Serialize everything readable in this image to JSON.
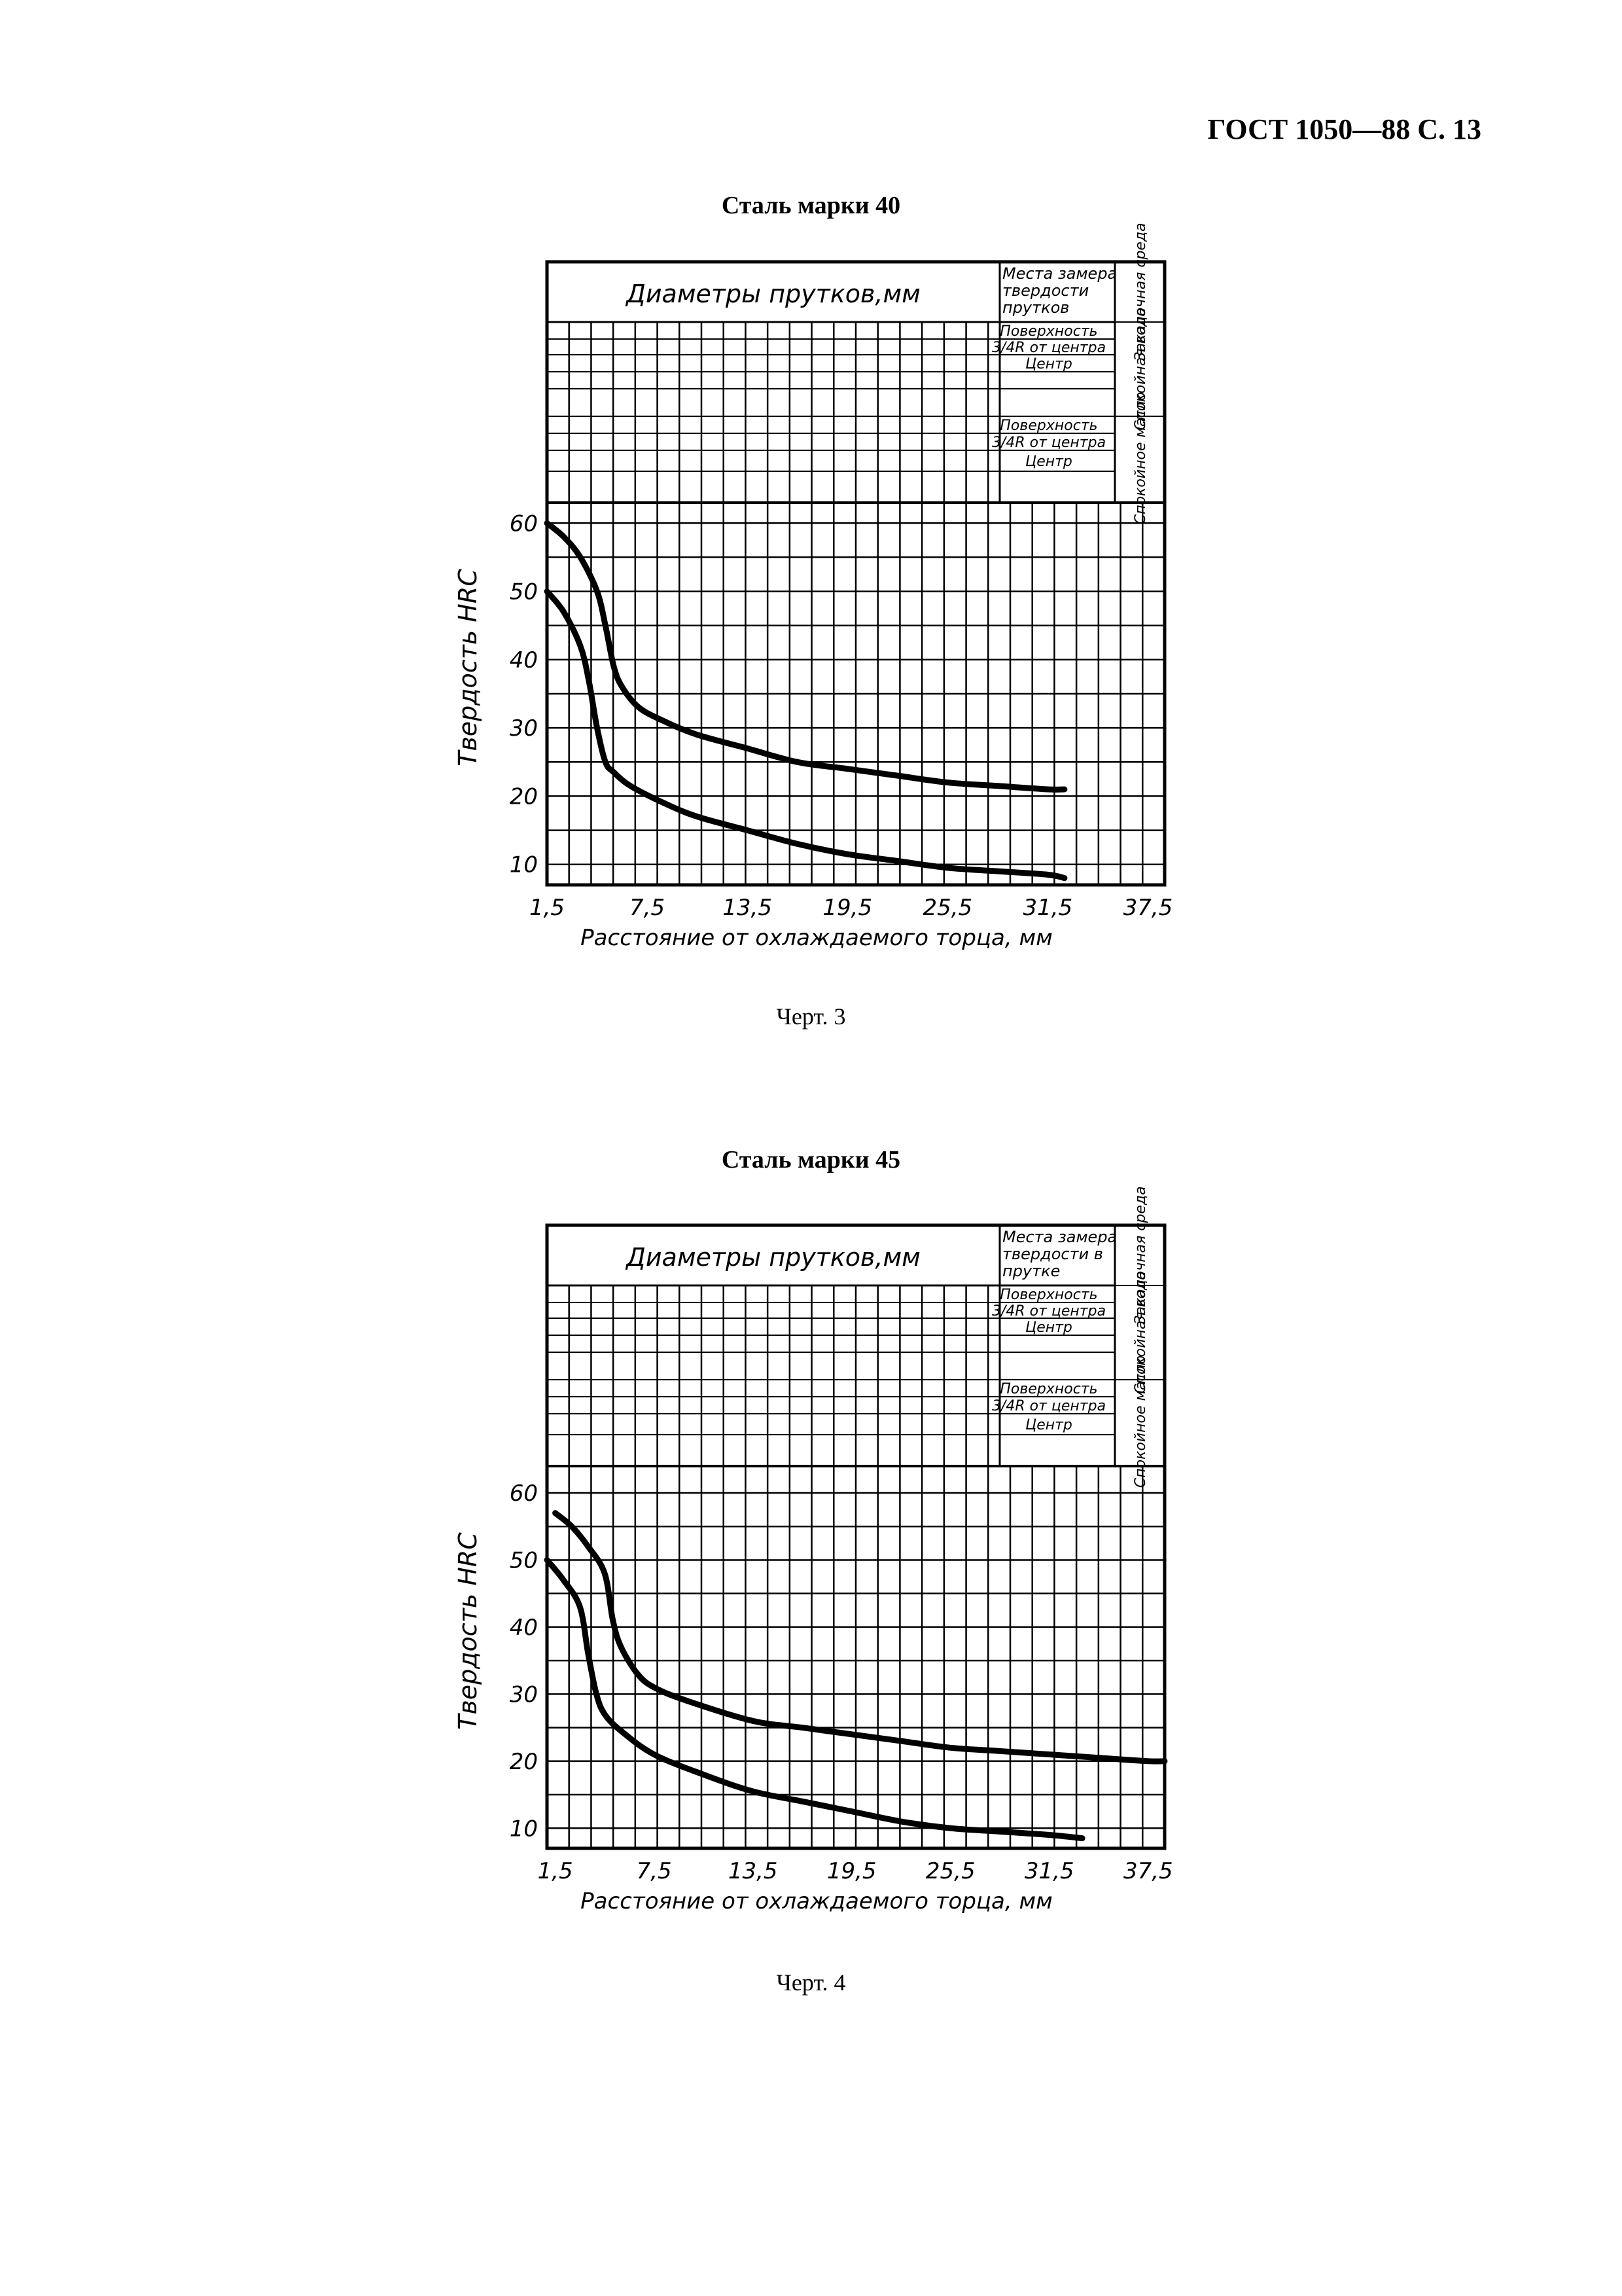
{
  "page_header": "ГОСТ 1050—88 С. 13",
  "charts": [
    {
      "title": "Сталь марки 40",
      "caption": "Черт. 3",
      "header_title": "Диаметры прутков,мм",
      "measure_title": "Места замера твердости прутков",
      "medium_title": "Закалочная среда",
      "medium_water": "Спокойная вода",
      "medium_oil": "Спокойное масло",
      "row_labels": [
        "Поверхность",
        "3/4R от центра",
        "Центр",
        "Поверхность",
        "3/4R от центра",
        "Центр"
      ]
    },
    {
      "title": "Сталь марки 45",
      "caption": "Черт. 4",
      "header_title": "Диаметры прутков,мм",
      "measure_title": "Места замера твердости в прутке",
      "medium_title": "Закалочная среда",
      "medium_water": "Спокойная вода",
      "medium_oil": "Спокойное масло",
      "row_labels": [
        "Поверхность",
        "3/4R от центра",
        "Центр",
        "Поверхность",
        "3/4R от центра",
        "Центр"
      ]
    }
  ],
  "chart_data": [
    {
      "type": "line",
      "title": "Сталь марки 40",
      "xlabel": "Расстояние от охлаждаемого торца, мм",
      "ylabel": "Твердость HRC",
      "x_ticks": [
        1.5,
        7.5,
        13.5,
        19.5,
        25.5,
        31.5,
        37.5
      ],
      "y_ticks": [
        10,
        20,
        30,
        40,
        50,
        60
      ],
      "xlim": [
        1.5,
        38.5
      ],
      "ylim": [
        7,
        63
      ],
      "grid": true,
      "series": [
        {
          "x": [
            1.5,
            2.5,
            3.5,
            4.5,
            5.0,
            5.5,
            6.0,
            7.0,
            8.5,
            10.5,
            13.5,
            16.5,
            19.5,
            22.5,
            25.5,
            28.5,
            31.5,
            32.5
          ],
          "y": [
            60,
            58,
            55,
            50,
            45,
            39,
            36,
            33,
            31,
            29,
            27,
            25,
            24,
            23,
            22,
            21.5,
            21,
            21
          ]
        },
        {
          "x": [
            1.5,
            2.5,
            3.5,
            4.0,
            4.5,
            5.0,
            5.5,
            6.5,
            8.5,
            10.5,
            13.5,
            16.5,
            19.5,
            22.5,
            25.5,
            28.5,
            31.5,
            32.5
          ],
          "y": [
            50,
            47,
            42,
            37,
            30,
            25,
            23.5,
            21.5,
            19,
            17,
            15,
            13,
            11.5,
            10.5,
            9.5,
            9,
            8.5,
            8
          ]
        }
      ]
    },
    {
      "type": "line",
      "title": "Сталь марки 45",
      "xlabel": "Расстояние от охлаждаемого торца, мм",
      "ylabel": "Твердость HRC",
      "x_ticks": [
        1.5,
        7.5,
        13.5,
        19.5,
        25.5,
        31.5,
        37.5
      ],
      "y_ticks": [
        10,
        20,
        30,
        40,
        50,
        60
      ],
      "xlim": [
        1.0,
        38.5
      ],
      "ylim": [
        7,
        64
      ],
      "grid": true,
      "series": [
        {
          "x": [
            1.5,
            2.5,
            3.5,
            4.5,
            5.0,
            5.5,
            6.5,
            7.5,
            9.5,
            13.5,
            16.5,
            19.5,
            22.5,
            25.5,
            28.5,
            31.5,
            34.5,
            37.5,
            38.5
          ],
          "y": [
            57,
            55,
            52,
            48,
            41,
            37,
            33,
            31,
            29,
            26,
            25,
            24,
            23,
            22,
            21.5,
            21,
            20.5,
            20,
            20
          ]
        },
        {
          "x": [
            1.0,
            2.0,
            3.0,
            3.5,
            4.0,
            4.5,
            5.5,
            7.5,
            10.5,
            13.5,
            16.5,
            19.5,
            22.5,
            25.5,
            28.5,
            31.5,
            33.5
          ],
          "y": [
            50,
            47,
            43,
            36,
            30,
            27,
            24.5,
            21,
            18,
            15.5,
            14,
            12.5,
            11,
            10,
            9.5,
            9,
            8.5
          ]
        }
      ]
    }
  ]
}
